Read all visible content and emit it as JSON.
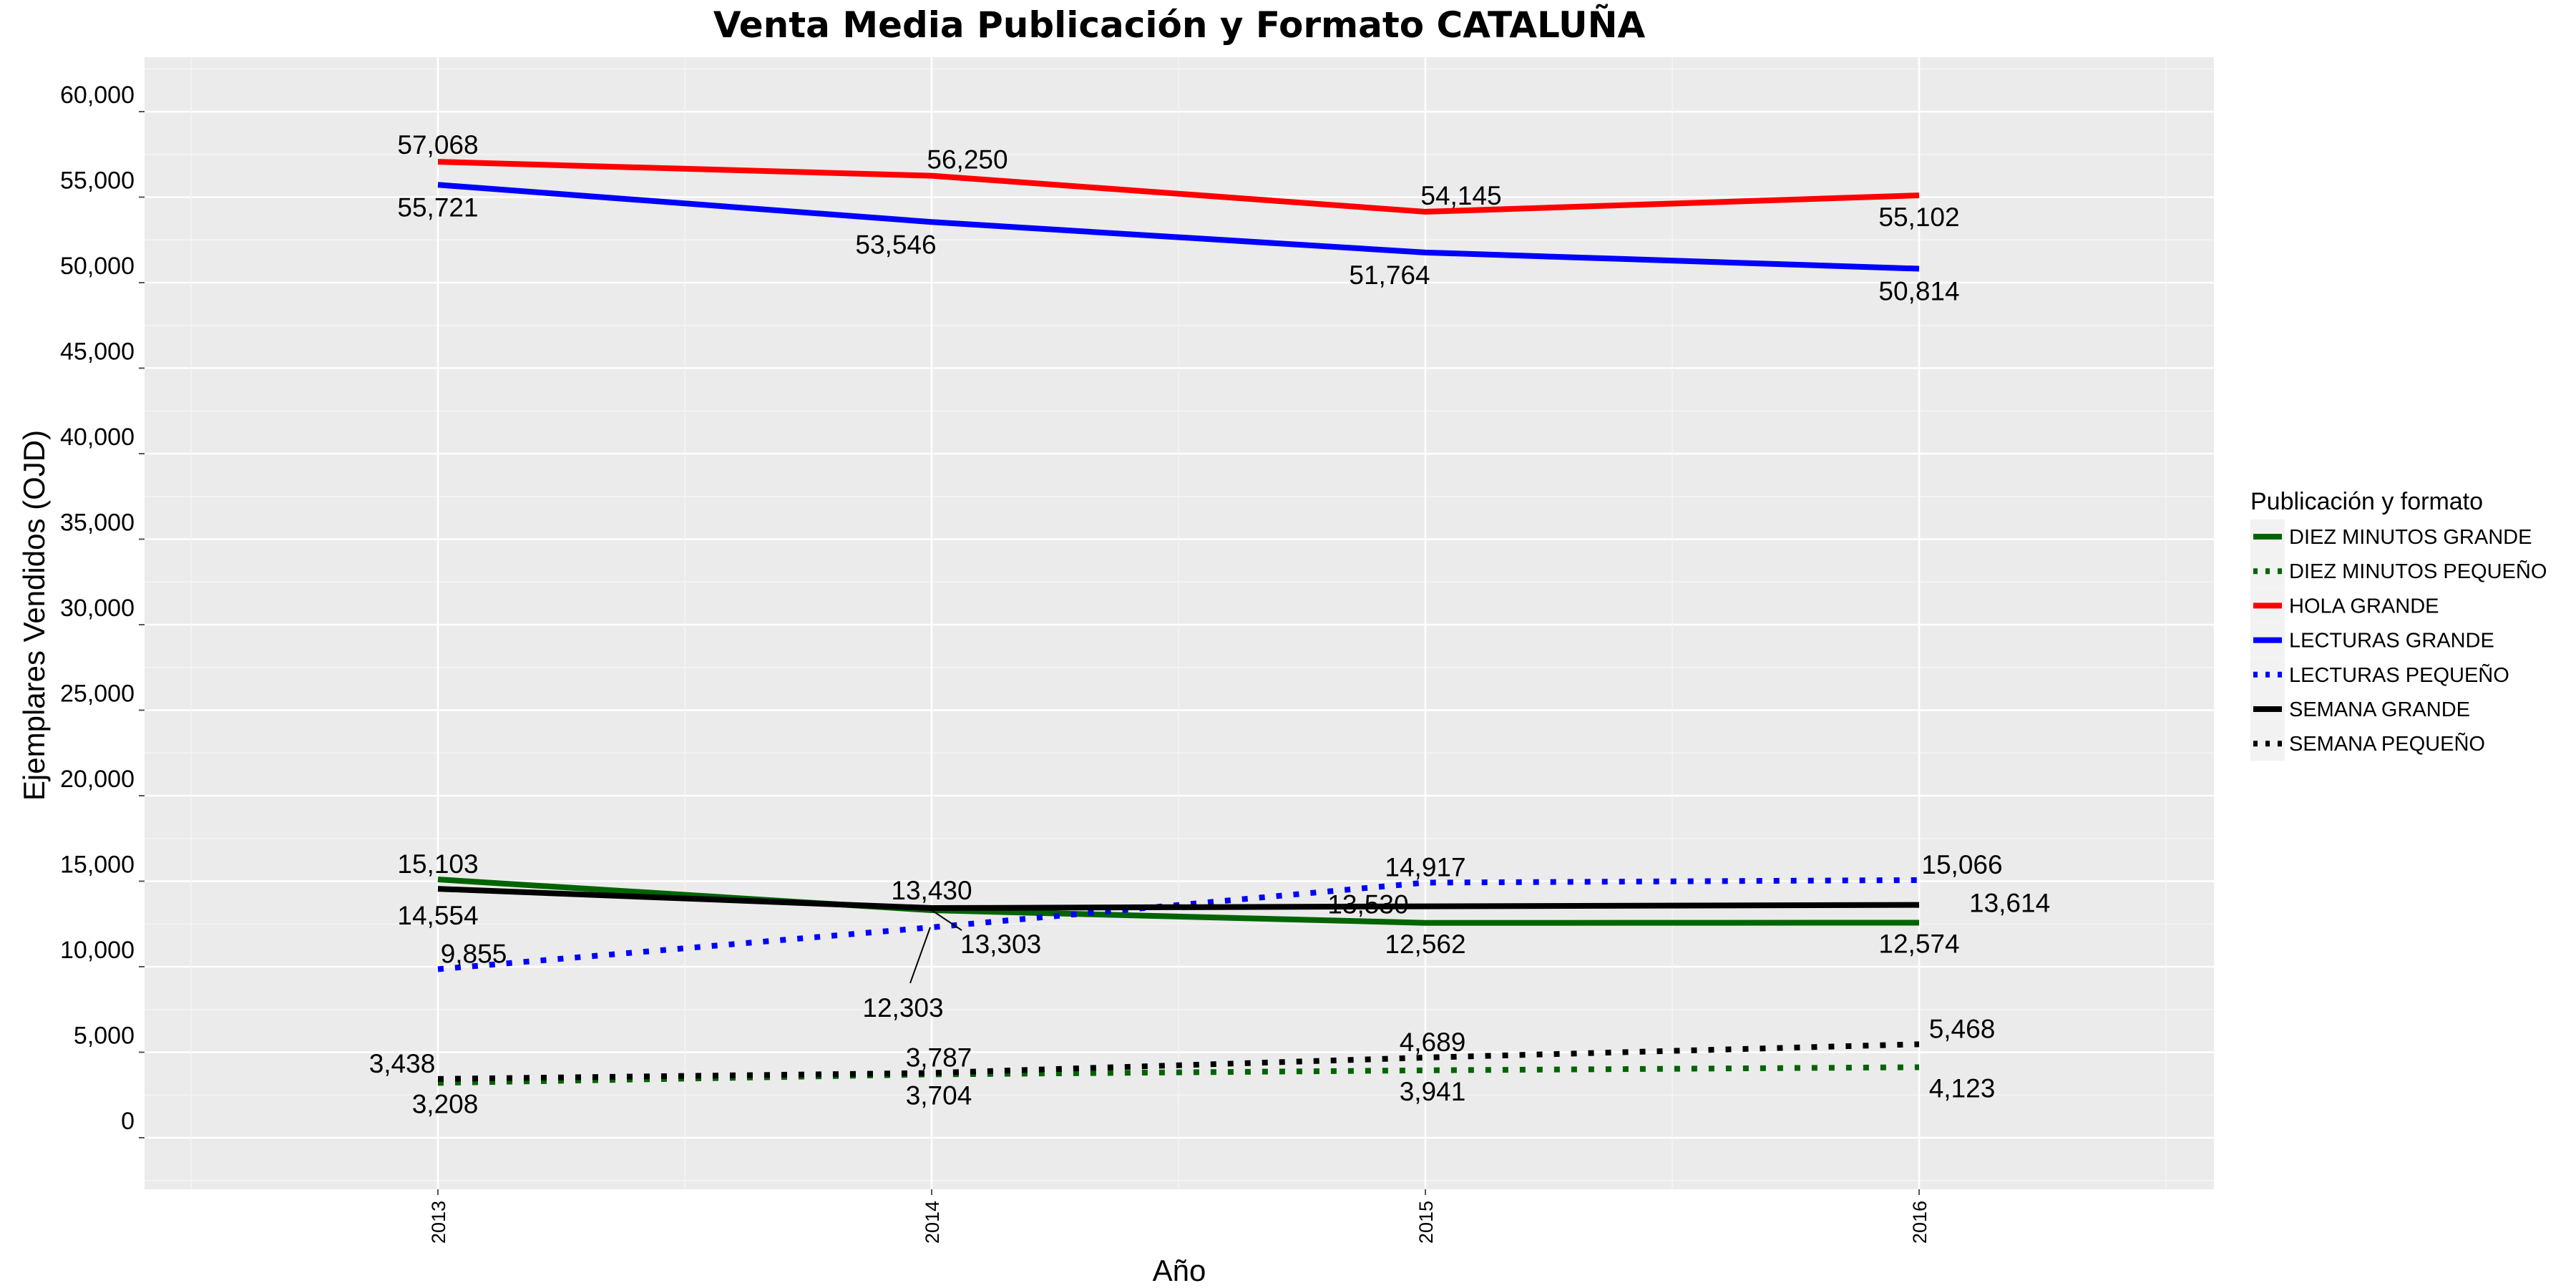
{
  "chart_data": {
    "type": "line",
    "title": "Venta Media Publicación y Formato  CATALUÑA",
    "xlabel": "Año",
    "ylabel": "Ejemplares Vendidos (OJD)",
    "x": [
      "2013",
      "2014",
      "2015",
      "2016"
    ],
    "ylim": [
      -3000,
      63000
    ],
    "yticks": [
      0,
      5000,
      10000,
      15000,
      20000,
      25000,
      30000,
      35000,
      40000,
      45000,
      50000,
      55000,
      60000
    ],
    "ytick_labels": [
      "0",
      "5,000",
      "10,000",
      "15,000",
      "20,000",
      "25,000",
      "30,000",
      "35,000",
      "40,000",
      "45,000",
      "50,000",
      "55,000",
      "60,000"
    ],
    "grid": true,
    "legend_position": "right",
    "legend_title": "Publicación y formato",
    "series": [
      {
        "name": "DIEZ MINUTOS GRANDE",
        "color": "#006400",
        "style": "solid",
        "values": [
          15103,
          13303,
          12562,
          12574
        ],
        "labels": [
          "15,103",
          "13,303",
          "12,562",
          "12,574"
        ]
      },
      {
        "name": "DIEZ MINUTOS PEQUEÑO",
        "color": "#006400",
        "style": "dotted",
        "values": [
          3208,
          3704,
          3941,
          4123
        ],
        "labels": [
          "3,208",
          "3,704",
          "3,941",
          "4,123"
        ]
      },
      {
        "name": "HOLA GRANDE",
        "color": "#ff0000",
        "style": "solid",
        "values": [
          57068,
          56250,
          54145,
          55102
        ],
        "labels": [
          "57,068",
          "56,250",
          "54,145",
          "55,102"
        ]
      },
      {
        "name": "LECTURAS GRANDE",
        "color": "#0000ff",
        "style": "solid",
        "values": [
          55721,
          53546,
          51764,
          50814
        ],
        "labels": [
          "55,721",
          "53,546",
          "51,764",
          "50,814"
        ]
      },
      {
        "name": "LECTURAS PEQUEÑO",
        "color": "#0000ff",
        "style": "dotted",
        "values": [
          9855,
          12303,
          14917,
          15066
        ],
        "labels": [
          "9,855",
          "12,303",
          "14,917",
          "15,066"
        ]
      },
      {
        "name": "SEMANA GRANDE",
        "color": "#000000",
        "style": "solid",
        "values": [
          14554,
          13430,
          13530,
          13614
        ],
        "labels": [
          "14,554",
          "13,430",
          "13,530",
          "13,614"
        ]
      },
      {
        "name": "SEMANA PEQUEÑO",
        "color": "#000000",
        "style": "dotted",
        "values": [
          3438,
          3787,
          4689,
          5468
        ],
        "labels": [
          "3,438",
          "3,787",
          "4,689",
          "5,468"
        ]
      }
    ]
  }
}
